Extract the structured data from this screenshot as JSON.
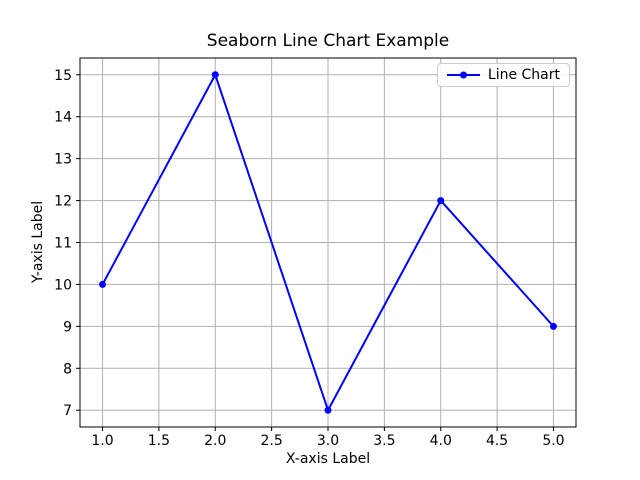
{
  "chart_data": {
    "type": "line",
    "title": "Seaborn Line Chart Example",
    "xlabel": "X-axis Label",
    "ylabel": "Y-axis Label",
    "series": [
      {
        "name": "Line Chart",
        "color": "#0000ff",
        "marker": "circle",
        "x": [
          1,
          2,
          3,
          4,
          5
        ],
        "y": [
          10,
          15,
          7,
          12,
          9
        ]
      }
    ],
    "xlim": [
      0.8,
      5.2
    ],
    "ylim": [
      6.6,
      15.4
    ],
    "xticks": [
      1.0,
      1.5,
      2.0,
      2.5,
      3.0,
      3.5,
      4.0,
      4.5,
      5.0
    ],
    "xtick_labels": [
      "1.0",
      "1.5",
      "2.0",
      "2.5",
      "3.0",
      "3.5",
      "4.0",
      "4.5",
      "5.0"
    ],
    "yticks": [
      7,
      8,
      9,
      10,
      11,
      12,
      13,
      14,
      15
    ],
    "ytick_labels": [
      "7",
      "8",
      "9",
      "10",
      "11",
      "12",
      "13",
      "14",
      "15"
    ],
    "grid": true,
    "grid_color": "#b0b0b0",
    "spine_color": "#000000",
    "tick_color": "#000000",
    "background": "#ffffff",
    "legend_position": "upper right"
  }
}
